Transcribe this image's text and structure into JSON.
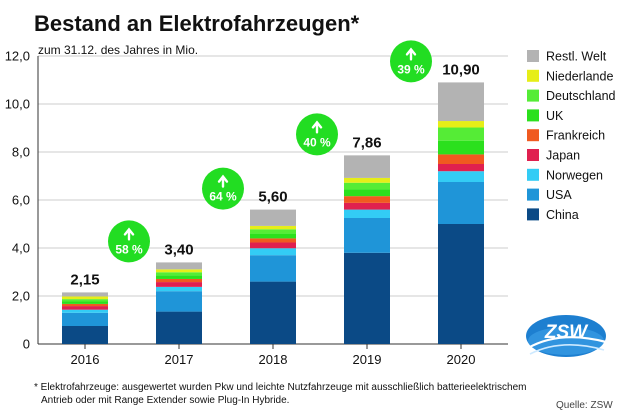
{
  "chart_data": {
    "type": "bar",
    "stacked": true,
    "title": "Bestand an Elektrofahrzeugen*",
    "subtitle": "zum 31.12. des Jahres in Mio.",
    "categories": [
      "2016",
      "2017",
      "2018",
      "2019",
      "2020"
    ],
    "ylim": [
      0,
      12
    ],
    "yticks": [
      "0",
      "2,0",
      "4,0",
      "6,0",
      "8,0",
      "10,0",
      "12,0"
    ],
    "ytick_values": [
      0,
      2,
      4,
      6,
      8,
      10,
      12
    ],
    "grid": true,
    "totals": [
      2.15,
      3.4,
      5.6,
      7.86,
      10.9
    ],
    "total_labels": [
      "2,15",
      "3,40",
      "5,60",
      "7,86",
      "10,90"
    ],
    "growth_labels": [
      "58 %",
      "64 %",
      "40 %",
      "39 %"
    ],
    "legend_position": "right",
    "series": [
      {
        "name": "China",
        "color": "#0b4a86",
        "values": [
          0.75,
          1.35,
          2.6,
          3.8,
          5.0
        ]
      },
      {
        "name": "USA",
        "color": "#1f95d8",
        "values": [
          0.55,
          0.85,
          1.1,
          1.45,
          1.75
        ]
      },
      {
        "name": "Norwegen",
        "color": "#33ccf5",
        "values": [
          0.13,
          0.18,
          0.29,
          0.35,
          0.45
        ]
      },
      {
        "name": "Japan",
        "color": "#e0204f",
        "values": [
          0.15,
          0.2,
          0.24,
          0.28,
          0.3
        ]
      },
      {
        "name": "Frankreich",
        "color": "#f05a20",
        "values": [
          0.09,
          0.13,
          0.17,
          0.28,
          0.4
        ]
      },
      {
        "name": "UK",
        "color": "#2be01d",
        "values": [
          0.1,
          0.15,
          0.2,
          0.28,
          0.57
        ]
      },
      {
        "name": "Deutschland",
        "color": "#55ec36",
        "values": [
          0.1,
          0.13,
          0.18,
          0.28,
          0.55
        ]
      },
      {
        "name": "Niederlande",
        "color": "#e6ee18",
        "values": [
          0.11,
          0.12,
          0.14,
          0.2,
          0.27
        ]
      },
      {
        "name": "Restl. Welt",
        "color": "#b3b3b3",
        "values": [
          0.17,
          0.29,
          0.68,
          0.94,
          1.61
        ]
      }
    ]
  },
  "footnote": {
    "line1": "* Elektrofahrzeuge: ausgewertet wurden Pkw und leichte Nutzfahrzeuge mit ausschließlich batterieelektrischem",
    "line2": "Antrieb oder mit Range Extender sowie Plug-In Hybride."
  },
  "source": "Quelle: ZSW",
  "logo": {
    "text": "ZSW"
  },
  "icons": {
    "growth": "arrow-up-icon",
    "logo": "zsw-logo-icon"
  },
  "colors": {
    "growth_badge": "#22dd22",
    "grid": "#bbbbbb"
  }
}
